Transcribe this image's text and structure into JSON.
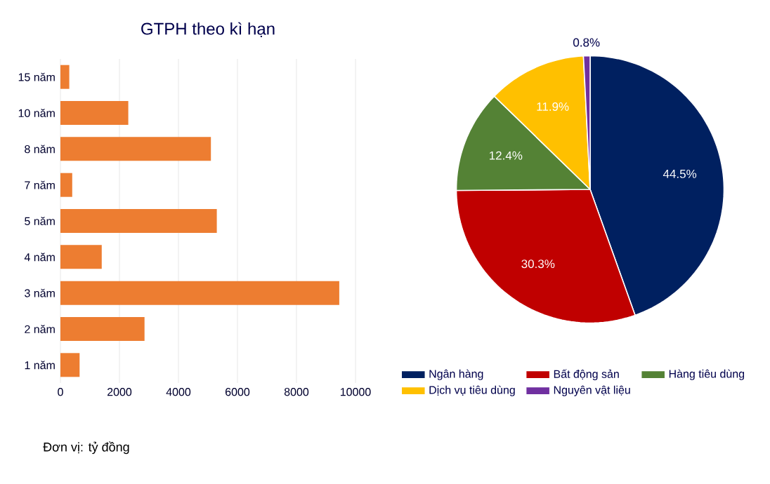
{
  "chart_data": [
    {
      "type": "bar",
      "orientation": "horizontal",
      "title": "GTPH theo kì hạn",
      "categories": [
        "15 năm",
        "10 năm",
        "8 năm",
        "7 năm",
        "5 năm",
        "4 năm",
        "3 năm",
        "2 năm",
        "1 năm"
      ],
      "values": [
        300,
        2300,
        5100,
        400,
        5300,
        1400,
        9450,
        2850,
        650
      ],
      "color": "#ed7d31",
      "xlim": [
        0,
        10000
      ],
      "xticks": [
        0,
        2000,
        4000,
        6000,
        8000,
        10000
      ],
      "grid": "x",
      "annotations": [
        "Đơn vị: tỷ đồng"
      ]
    },
    {
      "type": "pie",
      "categories": [
        "Ngân hàng",
        "Bất động sản",
        "Hàng tiêu dùng",
        "Dịch vụ tiêu dùng",
        "Nguyên vật liệu"
      ],
      "values": [
        44.5,
        30.3,
        12.4,
        11.9,
        0.8
      ],
      "colors": [
        "#002060",
        "#c00000",
        "#548235",
        "#ffc000",
        "#7030a0"
      ],
      "value_labels": [
        "44.5%",
        "30.3%",
        "12.4%",
        "11.9%",
        "0.8%"
      ],
      "legend": "bottom"
    }
  ]
}
